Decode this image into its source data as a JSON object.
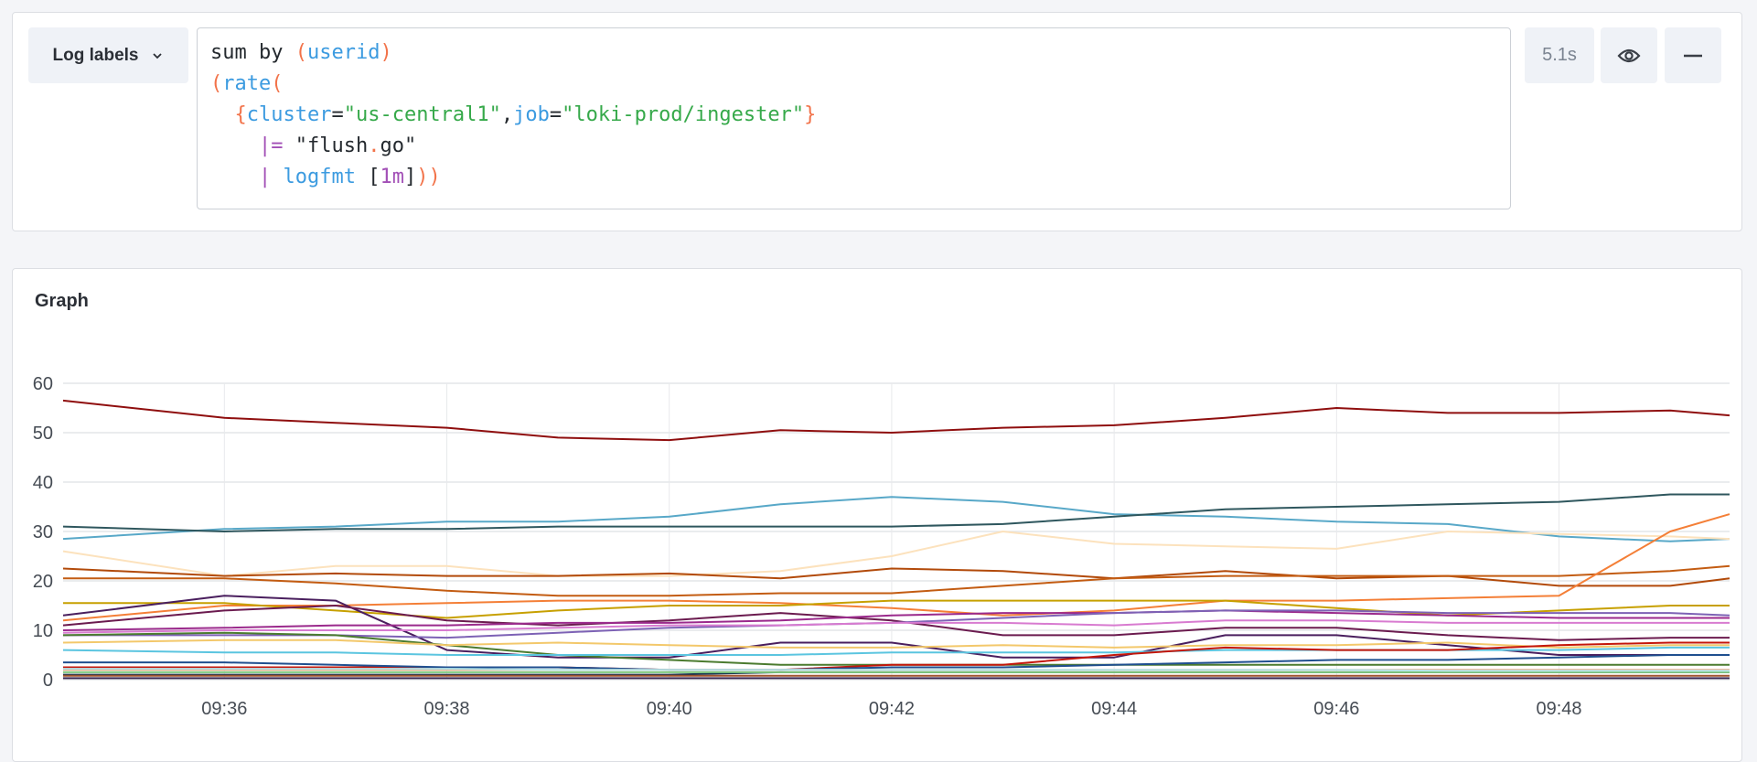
{
  "query_row": {
    "log_labels_label": "Log labels",
    "duration": "5.1s",
    "icons": {
      "log_labels": "chevron-down-icon",
      "toggle": "eye-icon",
      "collapse": "minus-icon"
    },
    "query_lines": [
      [
        {
          "t": "sum by ",
          "c": "plain"
        },
        {
          "t": "(",
          "c": "paren"
        },
        {
          "t": "userid",
          "c": "key"
        },
        {
          "t": ")",
          "c": "paren"
        }
      ],
      [
        {
          "t": "(",
          "c": "paren"
        },
        {
          "t": "rate",
          "c": "key"
        },
        {
          "t": "(",
          "c": "paren"
        }
      ],
      [
        {
          "t": "  ",
          "c": "plain"
        },
        {
          "t": "{",
          "c": "paren"
        },
        {
          "t": "cluster",
          "c": "key"
        },
        {
          "t": "=",
          "c": "plain"
        },
        {
          "t": "\"us-central1\"",
          "c": "str"
        },
        {
          "t": ",",
          "c": "plain"
        },
        {
          "t": "job",
          "c": "key"
        },
        {
          "t": "=",
          "c": "plain"
        },
        {
          "t": "\"loki-prod/ingester\"",
          "c": "str"
        },
        {
          "t": "}",
          "c": "paren"
        }
      ],
      [
        {
          "t": "    ",
          "c": "plain"
        },
        {
          "t": "|=",
          "c": "op"
        },
        {
          "t": " \"flush",
          "c": "plain"
        },
        {
          "t": ".",
          "c": "dot"
        },
        {
          "t": "go\"",
          "c": "plain"
        }
      ],
      [
        {
          "t": "    ",
          "c": "plain"
        },
        {
          "t": "|",
          "c": "op"
        },
        {
          "t": " logfmt",
          "c": "key"
        },
        {
          "t": " [",
          "c": "plain"
        },
        {
          "t": "1m",
          "c": "op"
        },
        {
          "t": "]",
          "c": "plain"
        },
        {
          "t": "))",
          "c": "paren"
        }
      ]
    ]
  },
  "graph": {
    "title": "Graph"
  },
  "chart_data": {
    "type": "line",
    "title": "",
    "xlabel": "",
    "ylabel": "",
    "ylim": [
      0,
      60
    ],
    "xlim": [
      "09:34:33",
      "09:49:32"
    ],
    "yticks": [
      0,
      10,
      20,
      30,
      40,
      50,
      60
    ],
    "xticks": [
      "09:36",
      "09:38",
      "09:40",
      "09:42",
      "09:44",
      "09:46",
      "09:48"
    ],
    "grid": true,
    "legend": "none",
    "x": [
      "09:34:33",
      "09:36:00",
      "09:37:00",
      "09:38:00",
      "09:39:00",
      "09:40:00",
      "09:41:00",
      "09:42:00",
      "09:43:00",
      "09:44:00",
      "09:45:00",
      "09:46:00",
      "09:47:00",
      "09:48:00",
      "09:49:00",
      "09:49:32"
    ],
    "series": [
      {
        "color": "#8f0e0e",
        "values": [
          56.5,
          53,
          52,
          51,
          49,
          48.5,
          50.5,
          50,
          51,
          51.5,
          53,
          55,
          54,
          54,
          54.5,
          53.5
        ]
      },
      {
        "color": "#58a8c8",
        "values": [
          28.5,
          30.5,
          31,
          32,
          32,
          33,
          35.5,
          37,
          36,
          33.5,
          33,
          32,
          31.5,
          29,
          28,
          28.5
        ]
      },
      {
        "color": "#2f575e",
        "values": [
          31,
          30,
          30.5,
          30.5,
          31,
          31,
          31,
          31,
          31.5,
          33,
          34.5,
          35,
          35.5,
          36,
          37.5,
          37.5
        ]
      },
      {
        "color": "#fce2bd",
        "values": [
          26,
          21,
          23,
          23,
          21,
          21,
          22,
          25,
          30,
          27.5,
          27,
          26.5,
          30,
          29.5,
          29,
          28.5
        ]
      },
      {
        "color": "#b24a0a",
        "values": [
          22.5,
          21,
          21.5,
          21,
          21,
          21.5,
          20.5,
          22.5,
          22,
          20.5,
          22,
          20.5,
          21,
          19,
          19,
          20.5
        ]
      },
      {
        "color": "#c35c12",
        "values": [
          20.5,
          20.5,
          19.5,
          18,
          17,
          17,
          17.5,
          17.5,
          19,
          20.5,
          21,
          21,
          21,
          21,
          22,
          23
        ]
      },
      {
        "color": "#f47f37",
        "values": [
          12,
          15,
          15,
          15.5,
          16,
          16,
          15.5,
          14.5,
          13,
          14,
          16,
          16,
          16.5,
          17,
          30,
          33.5
        ]
      },
      {
        "color": "#c7a000",
        "values": [
          15.5,
          15.5,
          14,
          12.5,
          14,
          15,
          15,
          16,
          16,
          16,
          16,
          14.5,
          13,
          14,
          15,
          15
        ]
      },
      {
        "color": "#4a1f5e",
        "values": [
          13,
          17,
          16,
          6,
          4.5,
          4.5,
          7.5,
          7.5,
          4.5,
          4.5,
          9,
          9,
          7,
          5,
          5,
          5
        ]
      },
      {
        "color": "#6b1b4f",
        "values": [
          11,
          14,
          15,
          12,
          11,
          12,
          13.5,
          12,
          9,
          9,
          10.5,
          10.5,
          9,
          8,
          8.5,
          8.5
        ]
      },
      {
        "color": "#9b2a8c",
        "values": [
          10,
          10.5,
          11,
          11,
          11.5,
          11.5,
          12,
          13,
          13.5,
          13.5,
          14,
          13.5,
          13,
          12.5,
          12.5,
          12.5
        ]
      },
      {
        "color": "#7d62b5",
        "values": [
          9,
          9,
          9,
          8.5,
          9.5,
          10.5,
          11,
          11.5,
          12.5,
          13.5,
          14,
          14,
          13.5,
          13.5,
          13.5,
          13
        ]
      },
      {
        "color": "#d87bd0",
        "values": [
          9.5,
          10,
          10,
          10,
          10.5,
          11,
          11,
          11.5,
          11.5,
          11,
          12,
          12,
          11.5,
          11.5,
          11.5,
          11.5
        ]
      },
      {
        "color": "#4b7b2f",
        "values": [
          9,
          9.5,
          9,
          7,
          5,
          4,
          3,
          3,
          3,
          3,
          3,
          3,
          3,
          3,
          3,
          3
        ]
      },
      {
        "color": "#f3c86b",
        "values": [
          7.5,
          8,
          8,
          7,
          7.5,
          7,
          6.5,
          6.5,
          7,
          6.5,
          7,
          7,
          7.5,
          6.5,
          7,
          7
        ]
      },
      {
        "color": "#5bc5e0",
        "values": [
          6,
          5.5,
          5.5,
          5,
          5,
          5,
          5,
          5.5,
          5.5,
          5.5,
          6,
          6,
          6,
          6,
          6.5,
          6.5
        ]
      },
      {
        "color": "#c4160a",
        "values": [
          2.5,
          2.5,
          2.5,
          2.5,
          2.5,
          2,
          2,
          3,
          3,
          5,
          6.5,
          6,
          6,
          7,
          7.5,
          7.5
        ]
      },
      {
        "color": "#1f4f8f",
        "values": [
          3.5,
          3.5,
          3,
          2.5,
          2.5,
          2,
          2,
          2.5,
          2.5,
          3,
          3.5,
          4,
          4,
          4.5,
          5,
          5
        ]
      },
      {
        "color": "#e5a580",
        "values": [
          2,
          2,
          2,
          2,
          2,
          2,
          2,
          2,
          2,
          2,
          2,
          2,
          2,
          2,
          2,
          2
        ]
      },
      {
        "color": "#12304f",
        "values": [
          1,
          1,
          1,
          1,
          1,
          1,
          1.5,
          1.5,
          1.5,
          1.5,
          1.5,
          1.5,
          1.5,
          1.5,
          1.5,
          1.5
        ]
      },
      {
        "color": "#7fc97f",
        "values": [
          1.5,
          1.5,
          1.5,
          1.5,
          1.5,
          1.5,
          1.5,
          1.5,
          1.5,
          1.5,
          1.5,
          1.5,
          1.5,
          1.5,
          1.5,
          1.5
        ]
      },
      {
        "color": "#b5e5ea",
        "values": [
          2.2,
          2.2,
          2.2,
          2.2,
          2,
          2,
          2,
          2,
          2,
          2,
          2,
          2,
          1.8,
          1.8,
          1.8,
          1.8
        ]
      },
      {
        "color": "#3d2a55",
        "values": [
          0.3,
          0.3,
          0.3,
          0.3,
          0.3,
          0.3,
          0.3,
          0.3,
          0.3,
          0.3,
          0.3,
          0.3,
          0.3,
          0.3,
          0.3,
          0.3
        ]
      },
      {
        "color": "#a0522d",
        "values": [
          0.8,
          0.8,
          0.8,
          0.8,
          0.8,
          0.8,
          0.8,
          0.8,
          0.8,
          0.8,
          0.8,
          0.8,
          0.8,
          0.8,
          0.8,
          0.8
        ]
      }
    ]
  }
}
